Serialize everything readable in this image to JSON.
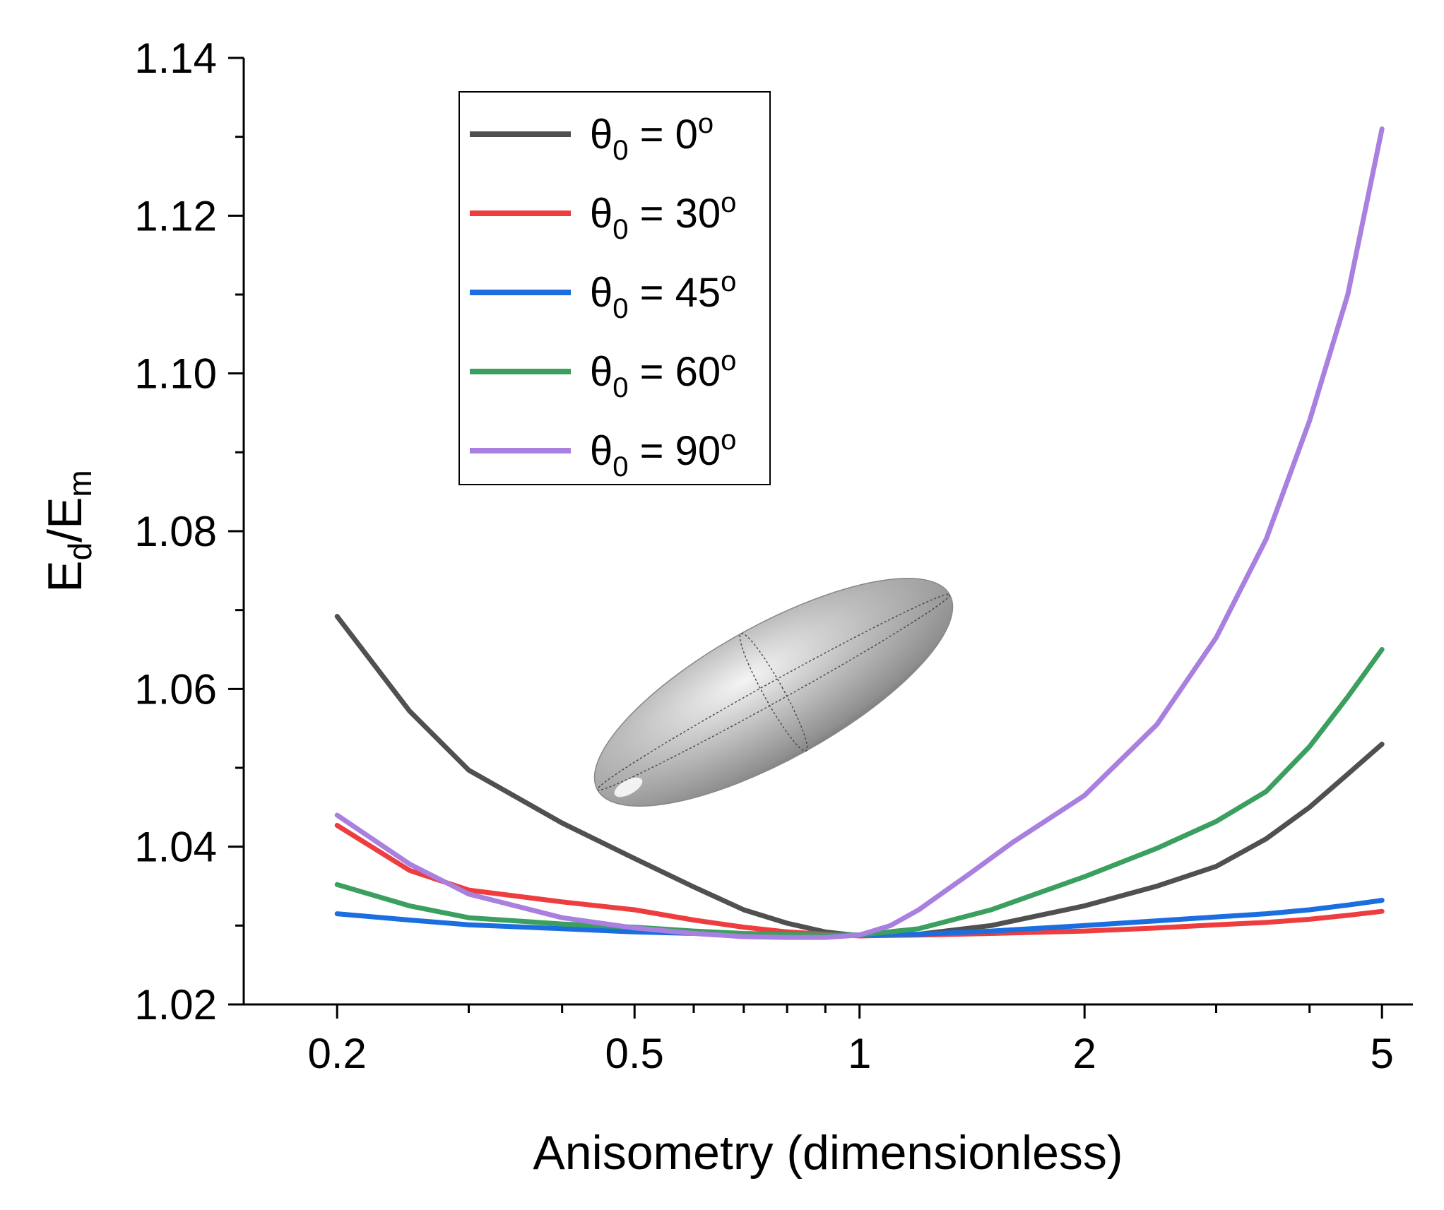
{
  "chart_data": {
    "type": "line",
    "title": "",
    "xlabel": "Anisometry (dimensionless)",
    "ylabel": {
      "base": "E",
      "sub1": "d",
      "slash": "/",
      "base2": "E",
      "sub2": "m"
    },
    "xscale": "log",
    "xlim": [
      0.15,
      5.5
    ],
    "ylim": [
      1.02,
      1.14
    ],
    "x_ticks": [
      0.2,
      0.5,
      1,
      2,
      5
    ],
    "x_tick_labels": [
      "0.2",
      "0.5",
      "1",
      "2",
      "5"
    ],
    "x_minor_ticks": [
      0.3,
      0.4,
      0.6,
      0.7,
      0.8,
      0.9,
      3,
      4
    ],
    "y_ticks": [
      1.02,
      1.04,
      1.06,
      1.08,
      1.1,
      1.12,
      1.14
    ],
    "y_tick_labels": [
      "1.02",
      "1.04",
      "1.06",
      "1.08",
      "1.10",
      "1.12",
      "1.14"
    ],
    "legend_position": "top-left",
    "legend_symbol": "θ",
    "legend_sub": "0",
    "legend_eq": " = ",
    "legend_deg": "o",
    "inset": "gray prolate spheroid (ellipsoid) illustration",
    "series": [
      {
        "name": "θ0 = 0o",
        "angle": "0",
        "color": "#505050",
        "x": [
          0.2,
          0.25,
          0.3,
          0.4,
          0.5,
          0.6,
          0.7,
          0.8,
          0.9,
          1.0,
          1.2,
          1.5,
          2.0,
          2.5,
          3.0,
          3.5,
          4.0,
          4.5,
          5.0
        ],
        "y": [
          1.0692,
          1.0572,
          1.0497,
          1.043,
          1.0385,
          1.0349,
          1.032,
          1.0303,
          1.0292,
          1.0287,
          1.0289,
          1.03,
          1.0325,
          1.035,
          1.0375,
          1.041,
          1.045,
          1.0492,
          1.053
        ]
      },
      {
        "name": "θ0 = 30o",
        "angle": "30",
        "color": "#ee3d3f",
        "x": [
          0.2,
          0.25,
          0.3,
          0.4,
          0.5,
          0.6,
          0.7,
          0.8,
          0.9,
          1.0,
          1.2,
          1.5,
          2.0,
          2.5,
          3.0,
          3.5,
          4.0,
          4.5,
          5.0
        ],
        "y": [
          1.0427,
          1.037,
          1.0345,
          1.033,
          1.032,
          1.0307,
          1.0298,
          1.0292,
          1.0289,
          1.0287,
          1.0288,
          1.029,
          1.0293,
          1.0297,
          1.0301,
          1.0304,
          1.0308,
          1.0313,
          1.0318
        ]
      },
      {
        "name": "θ0 = 45o",
        "angle": "45",
        "color": "#1b6ee0",
        "x": [
          0.2,
          0.25,
          0.3,
          0.4,
          0.5,
          0.6,
          0.7,
          0.8,
          0.9,
          1.0,
          1.2,
          1.5,
          2.0,
          2.5,
          3.0,
          3.5,
          4.0,
          4.5,
          5.0
        ],
        "y": [
          1.0315,
          1.0307,
          1.0301,
          1.0296,
          1.0292,
          1.029,
          1.0289,
          1.0288,
          1.0288,
          1.0288,
          1.0289,
          1.0293,
          1.03,
          1.0306,
          1.0311,
          1.0315,
          1.032,
          1.0326,
          1.0332
        ]
      },
      {
        "name": "θ0 = 60o",
        "angle": "60",
        "color": "#3a9f5f",
        "x": [
          0.2,
          0.25,
          0.3,
          0.4,
          0.5,
          0.6,
          0.7,
          0.8,
          0.9,
          1.0,
          1.2,
          1.5,
          2.0,
          2.5,
          3.0,
          3.5,
          4.0,
          4.5,
          5.0
        ],
        "y": [
          1.0352,
          1.0325,
          1.031,
          1.0302,
          1.0298,
          1.0293,
          1.029,
          1.0289,
          1.0288,
          1.0288,
          1.0296,
          1.032,
          1.0362,
          1.0398,
          1.0432,
          1.047,
          1.0527,
          1.059,
          1.065
        ]
      },
      {
        "name": "θ0 = 90o",
        "angle": "90",
        "color": "#a97fe0",
        "x": [
          0.2,
          0.25,
          0.3,
          0.4,
          0.5,
          0.6,
          0.7,
          0.8,
          0.9,
          1.0,
          1.1,
          1.2,
          1.4,
          1.6,
          2.0,
          2.5,
          3.0,
          3.5,
          4.0,
          4.5,
          5.0
        ],
        "y": [
          1.044,
          1.0378,
          1.034,
          1.031,
          1.0297,
          1.029,
          1.0286,
          1.0285,
          1.0285,
          1.0288,
          1.03,
          1.032,
          1.0365,
          1.0405,
          1.0465,
          1.0555,
          1.0665,
          1.079,
          1.094,
          1.11,
          1.131
        ]
      }
    ]
  }
}
